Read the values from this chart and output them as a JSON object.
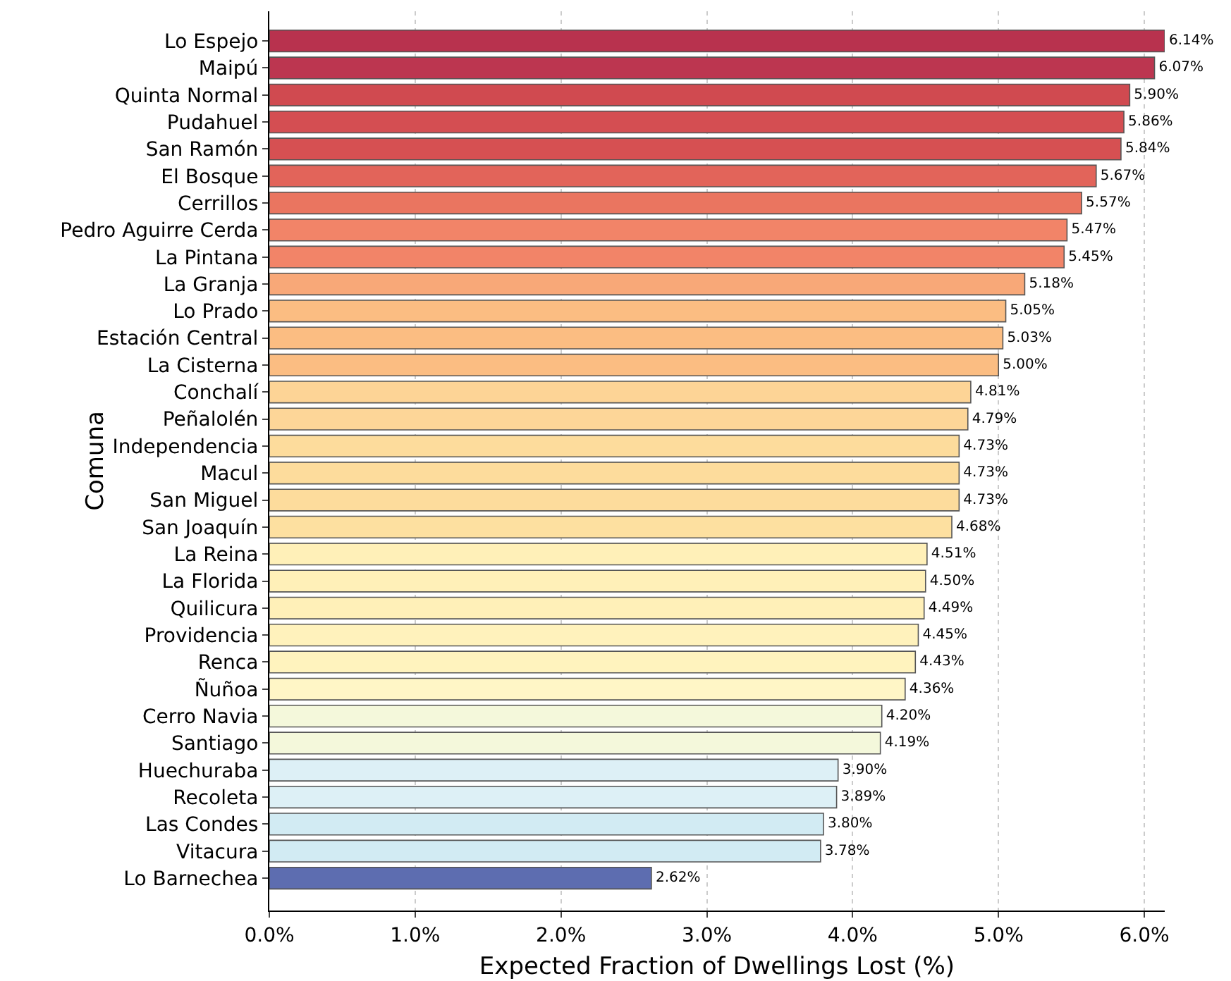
{
  "chart_data": {
    "type": "bar",
    "orientation": "horizontal",
    "xlabel": "Expected Fraction of Dwellings Lost (%)",
    "ylabel": "Comuna",
    "categories": [
      "Lo Espejo",
      "Maipú",
      "Quinta Normal",
      "Pudahuel",
      "San Ramón",
      "El Bosque",
      "Cerrillos",
      "Pedro Aguirre Cerda",
      "La Pintana",
      "La Granja",
      "Lo Prado",
      "Estación Central",
      "La Cisterna",
      "Conchalí",
      "Peñalolén",
      "Independencia",
      "Macul",
      "San Miguel",
      "San Joaquín",
      "La Reina",
      "La Florida",
      "Quilicura",
      "Providencia",
      "Renca",
      "Ñuñoa",
      "Cerro Navia",
      "Santiago",
      "Huechuraba",
      "Recoleta",
      "Las Condes",
      "Vitacura",
      "Lo Barnechea"
    ],
    "values": [
      6.14,
      6.07,
      5.9,
      5.86,
      5.84,
      5.67,
      5.57,
      5.47,
      5.45,
      5.18,
      5.05,
      5.03,
      5.0,
      4.81,
      4.79,
      4.73,
      4.73,
      4.73,
      4.68,
      4.51,
      4.5,
      4.49,
      4.45,
      4.43,
      4.36,
      4.2,
      4.19,
      3.9,
      3.89,
      3.8,
      3.78,
      2.62
    ],
    "value_labels": [
      "6.14%",
      "6.07%",
      "5.90%",
      "5.86%",
      "5.84%",
      "5.67%",
      "5.57%",
      "5.47%",
      "5.45%",
      "5.18%",
      "5.05%",
      "5.03%",
      "5.00%",
      "4.81%",
      "4.79%",
      "4.73%",
      "4.73%",
      "4.73%",
      "4.68%",
      "4.51%",
      "4.50%",
      "4.49%",
      "4.45%",
      "4.43%",
      "4.36%",
      "4.20%",
      "4.19%",
      "3.90%",
      "3.89%",
      "3.80%",
      "3.78%",
      "2.62%"
    ],
    "colors": [
      "#b8324e",
      "#bc3650",
      "#d04a50",
      "#d44e52",
      "#d65052",
      "#e2645a",
      "#ea7560",
      "#f28468",
      "#f28468",
      "#f8a878",
      "#fbbd82",
      "#fbbd82",
      "#fbbd82",
      "#fdd496",
      "#fdd698",
      "#fddc9c",
      "#fddc9c",
      "#fddc9c",
      "#fde0a0",
      "#fff0b8",
      "#fff0b8",
      "#fff0b8",
      "#fff2bc",
      "#fff3be",
      "#fff6c6",
      "#f4f8db",
      "#f4f8db",
      "#ddf0f6",
      "#ddf0f6",
      "#d2ebf3",
      "#d2ebf3",
      "#5d6db0"
    ],
    "xlim": [
      0,
      6.14
    ],
    "xticks": [
      {
        "value": 0,
        "label": "0.0%"
      },
      {
        "value": 1,
        "label": "1.0%"
      },
      {
        "value": 2,
        "label": "2.0%"
      },
      {
        "value": 3,
        "label": "3.0%"
      },
      {
        "value": 4,
        "label": "4.0%"
      },
      {
        "value": 5,
        "label": "5.0%"
      },
      {
        "value": 6,
        "label": "6.0%"
      }
    ],
    "grid": "x"
  }
}
